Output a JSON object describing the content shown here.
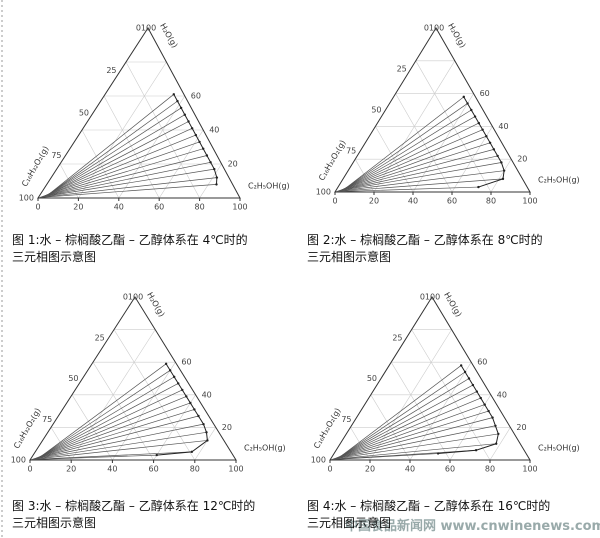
{
  "axes": {
    "water_label": "H₂O(g)",
    "ester_label": "C₁₆H₃₂O₂(g)",
    "ethanol_label": "C₂H₅OH(g)",
    "apex_label": "0100",
    "bottom_ticks": [
      0,
      20,
      40,
      60,
      80,
      100
    ],
    "right_ticks": [
      20,
      40,
      60
    ],
    "left_ticks": [
      25,
      50,
      75,
      100
    ]
  },
  "figures": [
    {
      "caption": [
        "图 1:水 – 棕榈酸乙酯 – 乙醇体系在 4℃时的",
        "三元相图示意图"
      ],
      "tie_lines": [
        [
          0.5,
          0.3,
          84,
          8
        ],
        [
          0.8,
          0.4,
          82,
          12
        ],
        [
          1,
          0.5,
          78,
          17
        ],
        [
          1.2,
          0.6,
          74,
          21
        ],
        [
          1.5,
          0.7,
          70,
          25
        ],
        [
          1.8,
          0.8,
          66,
          29
        ],
        [
          2,
          1,
          62,
          33
        ],
        [
          2.3,
          1,
          58,
          37
        ],
        [
          2.6,
          1.2,
          54,
          41
        ],
        [
          3,
          1.3,
          50,
          45
        ],
        [
          3.2,
          1.4,
          46,
          49
        ],
        [
          3.5,
          1.5,
          42,
          53
        ],
        [
          3.8,
          1.6,
          38,
          57
        ],
        [
          4,
          1.8,
          34,
          61
        ]
      ]
    },
    {
      "caption": [
        "图 2:水 – 棕榈酸乙酯 – 乙醇体系在 8℃时的",
        "三元相图示意图"
      ],
      "tie_lines": [
        [
          0.3,
          0.2,
          72,
          3
        ],
        [
          0.5,
          0.3,
          82,
          8
        ],
        [
          0.8,
          0.4,
          80,
          13
        ],
        [
          1,
          0.5,
          76,
          18
        ],
        [
          1.3,
          0.6,
          72,
          22
        ],
        [
          1.6,
          0.7,
          68,
          26
        ],
        [
          1.9,
          0.8,
          64,
          30
        ],
        [
          2.2,
          1,
          60,
          34
        ],
        [
          2.5,
          1.1,
          56,
          38
        ],
        [
          2.8,
          1.2,
          52,
          42
        ],
        [
          3.1,
          1.3,
          48,
          46
        ],
        [
          3.4,
          1.4,
          44,
          50
        ],
        [
          3.7,
          1.6,
          40,
          54
        ],
        [
          4,
          1.8,
          36,
          58
        ]
      ]
    },
    {
      "caption": [
        "图 3:水 – 棕榈酸乙酯 – 乙醇体系在 12℃时的",
        "三元相图示意图"
      ],
      "tie_lines": [
        [
          0.3,
          0.2,
          60,
          3
        ],
        [
          0.5,
          0.3,
          76,
          5
        ],
        [
          0.8,
          0.4,
          80,
          12
        ],
        [
          1,
          0.5,
          77,
          17
        ],
        [
          1.3,
          0.6,
          73,
          22
        ],
        [
          1.6,
          0.7,
          68,
          27
        ],
        [
          1.9,
          0.8,
          64,
          31
        ],
        [
          2.2,
          1,
          60,
          35
        ],
        [
          2.5,
          1.1,
          56,
          39
        ],
        [
          2.8,
          1.2,
          52,
          43
        ],
        [
          3.1,
          1.3,
          48,
          47
        ],
        [
          3.4,
          1.4,
          44,
          51
        ],
        [
          3.7,
          1.6,
          40,
          55
        ],
        [
          4,
          1.8,
          36,
          59
        ]
      ]
    },
    {
      "caption": [
        "图 4:水 – 棕榈酸乙酯 – 乙醇体系在 16℃时的",
        "三元相图示意图"
      ],
      "tie_lines": [
        [
          0.3,
          0.2,
          52,
          4
        ],
        [
          0.5,
          0.3,
          70,
          6
        ],
        [
          0.8,
          0.4,
          78,
          10
        ],
        [
          1,
          0.5,
          76,
          16
        ],
        [
          1.3,
          0.6,
          72,
          21
        ],
        [
          1.6,
          0.7,
          68,
          26
        ],
        [
          1.9,
          0.8,
          64,
          30
        ],
        [
          2.2,
          1,
          60,
          34
        ],
        [
          2.5,
          1.1,
          56,
          38
        ],
        [
          2.8,
          1.2,
          52,
          42
        ],
        [
          3.1,
          1.3,
          48,
          46
        ],
        [
          3.4,
          1.4,
          44,
          50
        ],
        [
          3.7,
          1.6,
          40,
          54
        ],
        [
          4,
          1.8,
          36,
          58
        ]
      ]
    }
  ],
  "watermark": "中国食品新闻网 www.cnwinenews.com"
}
